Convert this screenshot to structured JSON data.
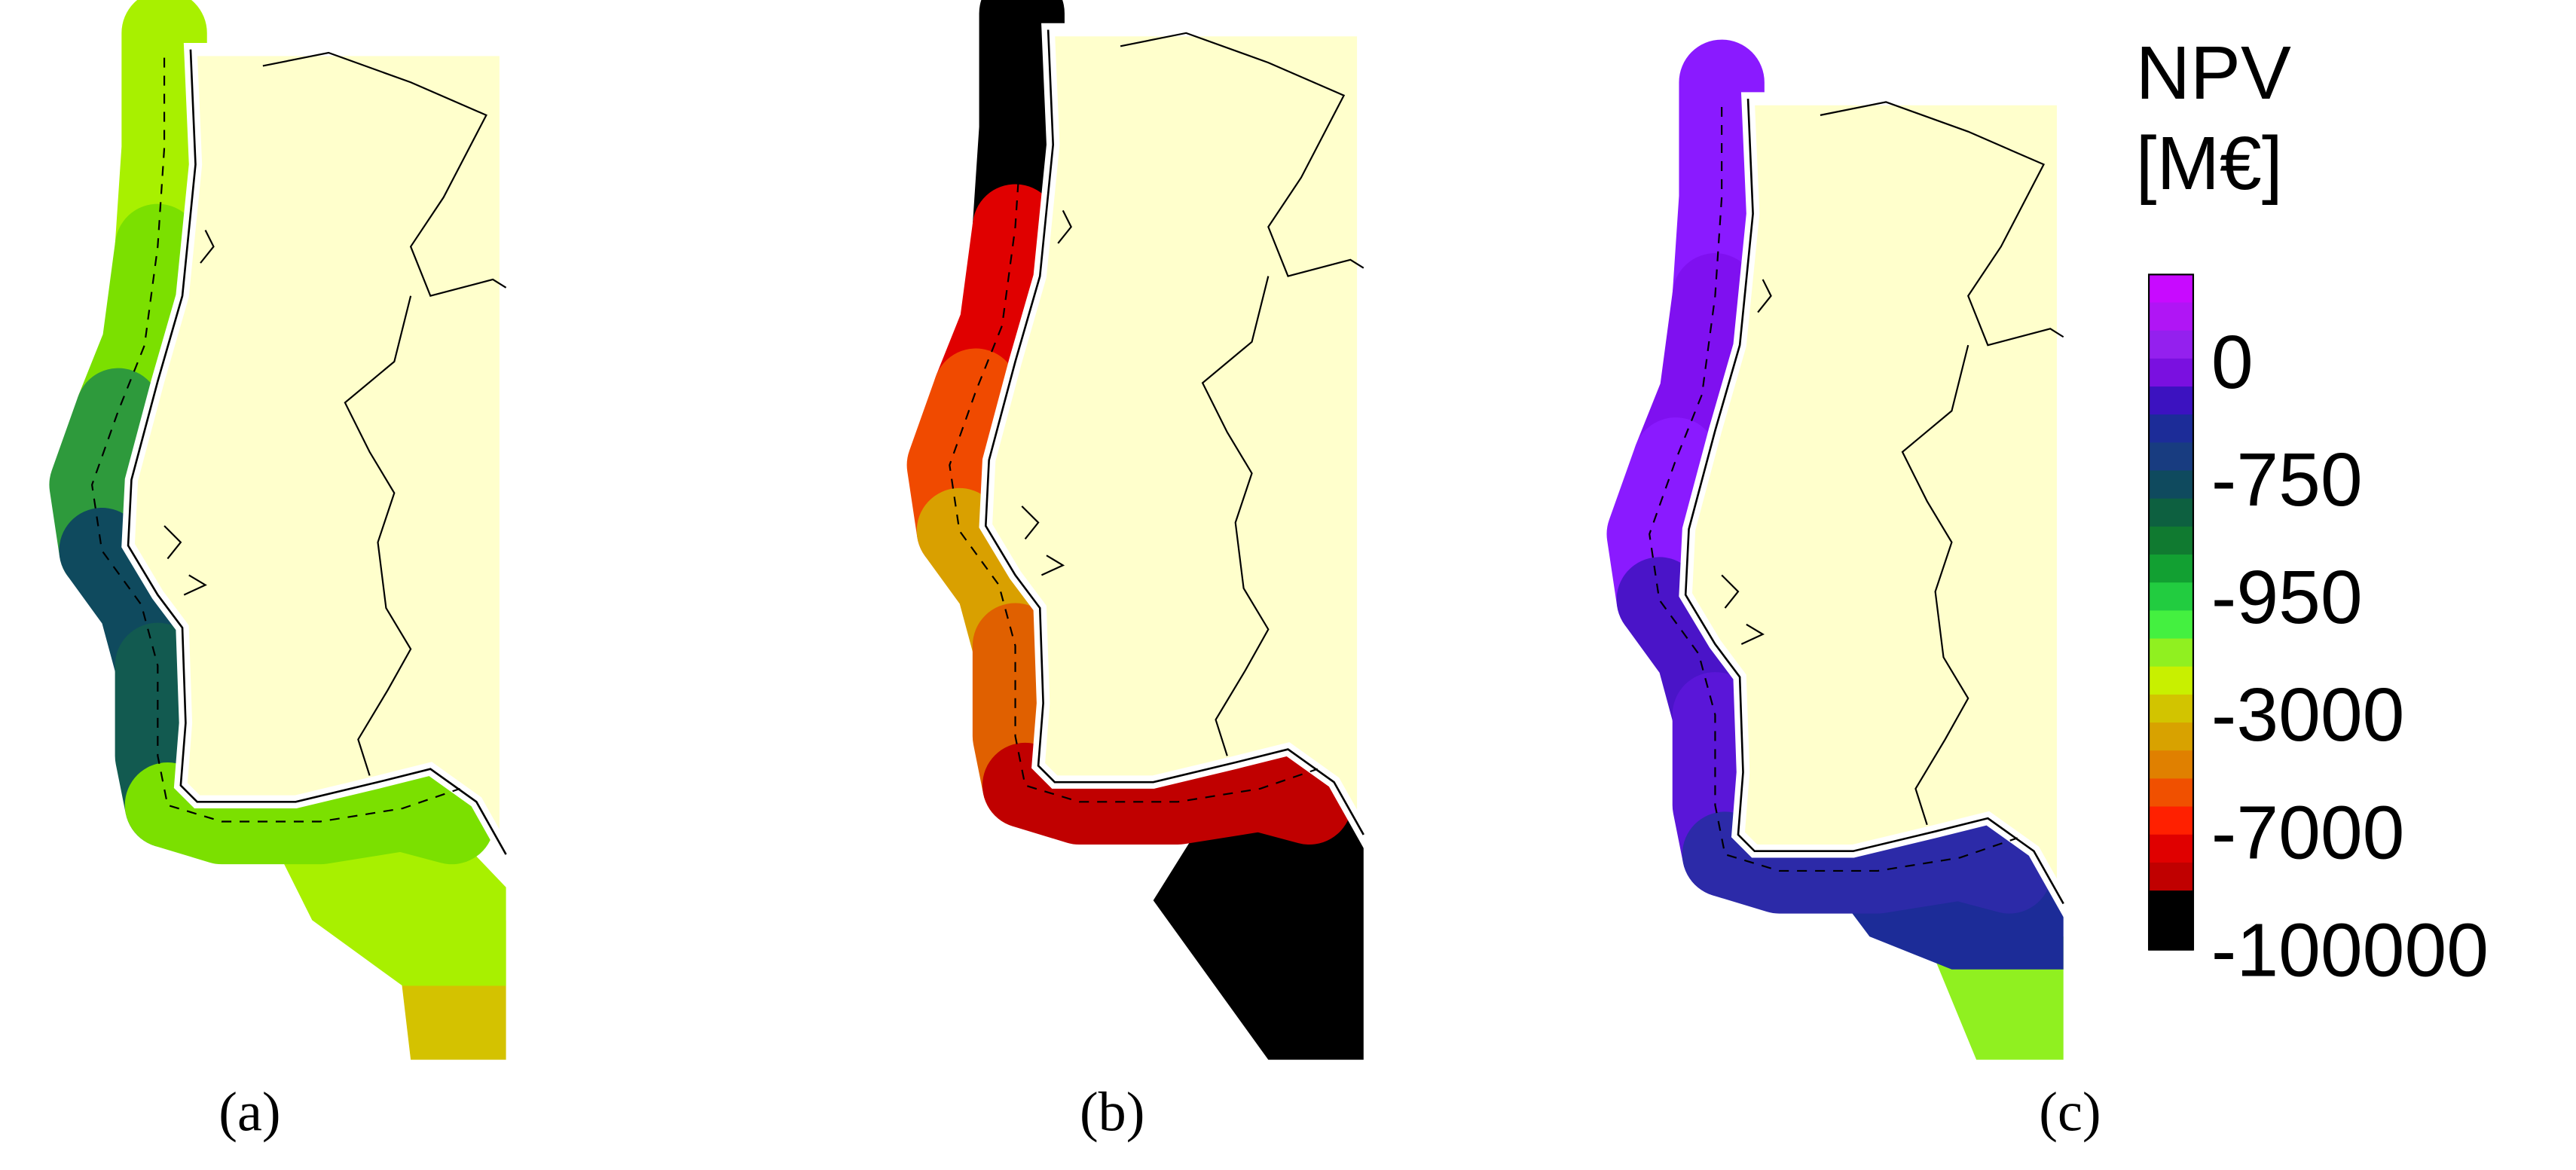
{
  "panels": [
    {
      "label": "(a)"
    },
    {
      "label": "(b)"
    },
    {
      "label": "(c)"
    }
  ],
  "colorbar": {
    "title": [
      "NPV",
      "[M€]"
    ],
    "labels": [
      0,
      -750,
      -950,
      -3000,
      -7000,
      -100000
    ],
    "colors": [
      "#c80aff",
      "#b015f5",
      "#9420ee",
      "#7a10e0",
      "#3c12c0",
      "#1c2c98",
      "#183c80",
      "#0f4a5e",
      "#0d6040",
      "#107a30",
      "#12a032",
      "#22cc40",
      "#44f040",
      "#90f020",
      "#c8f000",
      "#d2c400",
      "#d8a200",
      "#e08000",
      "#f05000",
      "#ff2000",
      "#e00000",
      "#c00000",
      "#000000"
    ]
  }
}
